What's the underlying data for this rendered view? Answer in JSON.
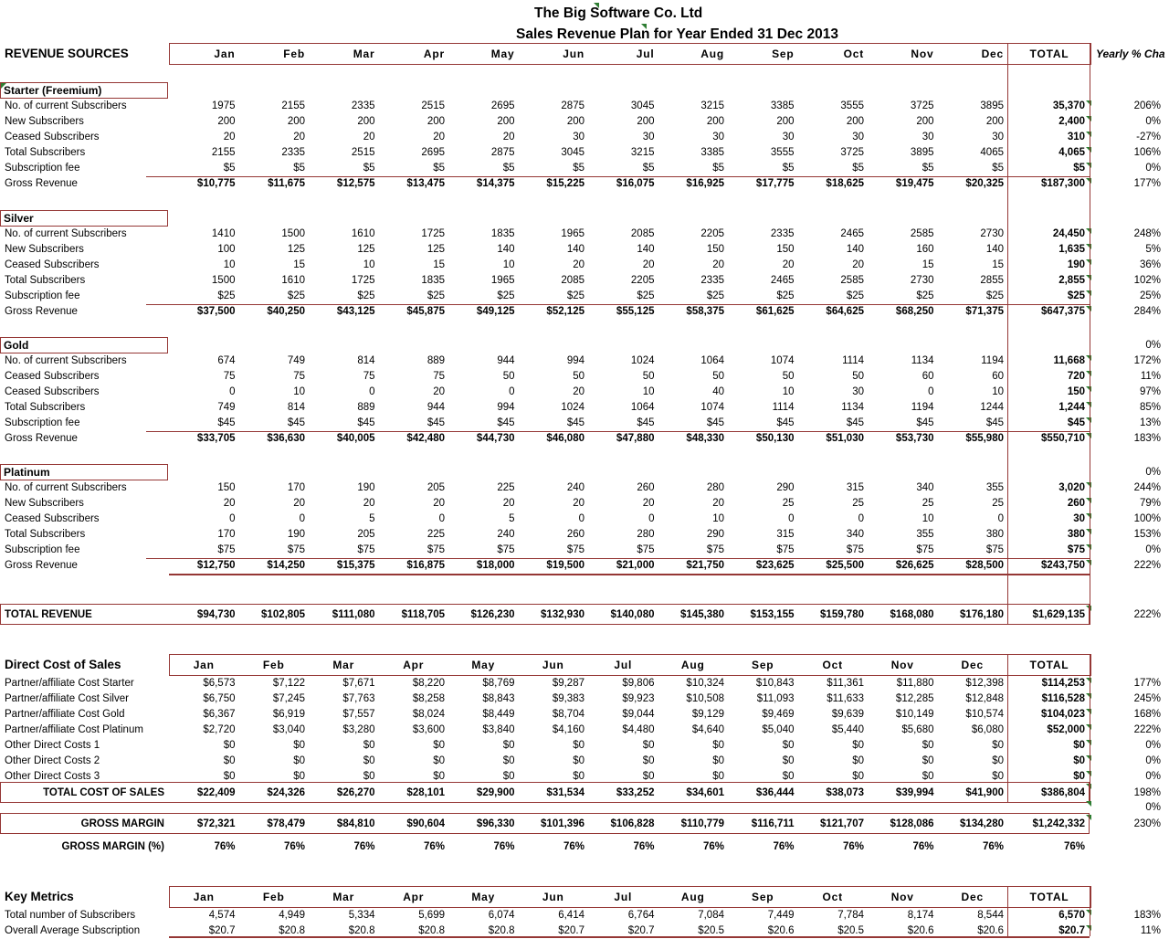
{
  "title": {
    "line1": "The Big Software Co. Ltd",
    "line2": "Sales Revenue Plan for Year Ended 31 Dec 2013"
  },
  "columns": {
    "revenue_title": "REVENUE SOURCES",
    "months": [
      "Jan",
      "Feb",
      "Mar",
      "Apr",
      "May",
      "Jun",
      "Jul",
      "Aug",
      "Sep",
      "Oct",
      "Nov",
      "Dec"
    ],
    "total_label": "TOTAL",
    "yearly_label": "Yearly % Cha"
  },
  "colors": {
    "border": "#953735",
    "marker": "#2e7d32"
  },
  "sections": [
    {
      "name": "Starter (Freemium)",
      "yearly": "",
      "rows": [
        {
          "label": "No. of current Subscribers",
          "values": [
            "1975",
            "2155",
            "2335",
            "2515",
            "2695",
            "2875",
            "3045",
            "3215",
            "3385",
            "3555",
            "3725",
            "3895"
          ],
          "total": "35,370",
          "yearly": "206%"
        },
        {
          "label": "New Subscribers",
          "values": [
            "200",
            "200",
            "200",
            "200",
            "200",
            "200",
            "200",
            "200",
            "200",
            "200",
            "200",
            "200"
          ],
          "total": "2,400",
          "yearly": "0%"
        },
        {
          "label": "Ceased Subscribers",
          "values": [
            "20",
            "20",
            "20",
            "20",
            "20",
            "30",
            "30",
            "30",
            "30",
            "30",
            "30",
            "30"
          ],
          "total": "310",
          "yearly": "-27%"
        },
        {
          "label": "Total Subscribers",
          "values": [
            "2155",
            "2335",
            "2515",
            "2695",
            "2875",
            "3045",
            "3215",
            "3385",
            "3555",
            "3725",
            "3895",
            "4065"
          ],
          "total": "4,065",
          "yearly": "106%"
        },
        {
          "label": "Subscription fee",
          "values": [
            "$5",
            "$5",
            "$5",
            "$5",
            "$5",
            "$5",
            "$5",
            "$5",
            "$5",
            "$5",
            "$5",
            "$5"
          ],
          "total": "$5",
          "yearly": "0%"
        },
        {
          "label": "Gross Revenue",
          "values": [
            "$10,775",
            "$11,675",
            "$12,575",
            "$13,475",
            "$14,375",
            "$15,225",
            "$16,075",
            "$16,925",
            "$17,775",
            "$18,625",
            "$19,475",
            "$20,325"
          ],
          "total": "$187,300",
          "yearly": "177%"
        }
      ]
    },
    {
      "name": "Silver",
      "yearly": "",
      "rows": [
        {
          "label": "No. of current Subscribers",
          "values": [
            "1410",
            "1500",
            "1610",
            "1725",
            "1835",
            "1965",
            "2085",
            "2205",
            "2335",
            "2465",
            "2585",
            "2730"
          ],
          "total": "24,450",
          "yearly": "248%"
        },
        {
          "label": "New Subscribers",
          "values": [
            "100",
            "125",
            "125",
            "125",
            "140",
            "140",
            "140",
            "150",
            "150",
            "140",
            "160",
            "140"
          ],
          "total": "1,635",
          "yearly": "5%"
        },
        {
          "label": "Ceased Subscribers",
          "values": [
            "10",
            "15",
            "10",
            "15",
            "10",
            "20",
            "20",
            "20",
            "20",
            "20",
            "15",
            "15"
          ],
          "total": "190",
          "yearly": "36%"
        },
        {
          "label": "Total Subscribers",
          "values": [
            "1500",
            "1610",
            "1725",
            "1835",
            "1965",
            "2085",
            "2205",
            "2335",
            "2465",
            "2585",
            "2730",
            "2855"
          ],
          "total": "2,855",
          "yearly": "102%"
        },
        {
          "label": "Subscription fee",
          "values": [
            "$25",
            "$25",
            "$25",
            "$25",
            "$25",
            "$25",
            "$25",
            "$25",
            "$25",
            "$25",
            "$25",
            "$25"
          ],
          "total": "$25",
          "yearly": "25%"
        },
        {
          "label": "Gross Revenue",
          "values": [
            "$37,500",
            "$40,250",
            "$43,125",
            "$45,875",
            "$49,125",
            "$52,125",
            "$55,125",
            "$58,375",
            "$61,625",
            "$64,625",
            "$68,250",
            "$71,375"
          ],
          "total": "$647,375",
          "yearly": "284%"
        }
      ]
    },
    {
      "name": "Gold",
      "yearly": "0%",
      "rows": [
        {
          "label": "No. of current Subscribers",
          "values": [
            "674",
            "749",
            "814",
            "889",
            "944",
            "994",
            "1024",
            "1064",
            "1074",
            "1114",
            "1134",
            "1194"
          ],
          "total": "11,668",
          "yearly": "172%"
        },
        {
          "label": "Ceased Subscribers",
          "values": [
            "75",
            "75",
            "75",
            "75",
            "50",
            "50",
            "50",
            "50",
            "50",
            "50",
            "60",
            "60"
          ],
          "total": "720",
          "yearly": "11%"
        },
        {
          "label": "Ceased Subscribers",
          "values": [
            "0",
            "10",
            "0",
            "20",
            "0",
            "20",
            "10",
            "40",
            "10",
            "30",
            "0",
            "10"
          ],
          "total": "150",
          "yearly": "97%"
        },
        {
          "label": "Total Subscribers",
          "values": [
            "749",
            "814",
            "889",
            "944",
            "994",
            "1024",
            "1064",
            "1074",
            "1114",
            "1134",
            "1194",
            "1244"
          ],
          "total": "1,244",
          "yearly": "85%"
        },
        {
          "label": "Subscription fee",
          "values": [
            "$45",
            "$45",
            "$45",
            "$45",
            "$45",
            "$45",
            "$45",
            "$45",
            "$45",
            "$45",
            "$45",
            "$45"
          ],
          "total": "$45",
          "yearly": "13%"
        },
        {
          "label": "Gross Revenue",
          "values": [
            "$33,705",
            "$36,630",
            "$40,005",
            "$42,480",
            "$44,730",
            "$46,080",
            "$47,880",
            "$48,330",
            "$50,130",
            "$51,030",
            "$53,730",
            "$55,980"
          ],
          "total": "$550,710",
          "yearly": "183%"
        }
      ]
    },
    {
      "name": "Platinum",
      "yearly": "0%",
      "rows": [
        {
          "label": "No. of current Subscribers",
          "values": [
            "150",
            "170",
            "190",
            "205",
            "225",
            "240",
            "260",
            "280",
            "290",
            "315",
            "340",
            "355"
          ],
          "total": "3,020",
          "yearly": "244%"
        },
        {
          "label": "New Subscribers",
          "values": [
            "20",
            "20",
            "20",
            "20",
            "20",
            "20",
            "20",
            "20",
            "25",
            "25",
            "25",
            "25"
          ],
          "total": "260",
          "yearly": "79%"
        },
        {
          "label": "Ceased Subscribers",
          "values": [
            "0",
            "0",
            "5",
            "0",
            "5",
            "0",
            "0",
            "10",
            "0",
            "0",
            "10",
            "0"
          ],
          "total": "30",
          "yearly": "100%"
        },
        {
          "label": "Total Subscribers",
          "values": [
            "170",
            "190",
            "205",
            "225",
            "240",
            "260",
            "280",
            "290",
            "315",
            "340",
            "355",
            "380"
          ],
          "total": "380",
          "yearly": "153%"
        },
        {
          "label": "Subscription fee",
          "values": [
            "$75",
            "$75",
            "$75",
            "$75",
            "$75",
            "$75",
            "$75",
            "$75",
            "$75",
            "$75",
            "$75",
            "$75"
          ],
          "total": "$75",
          "yearly": "0%"
        },
        {
          "label": "Gross Revenue",
          "values": [
            "$12,750",
            "$14,250",
            "$15,375",
            "$16,875",
            "$18,000",
            "$19,500",
            "$21,000",
            "$21,750",
            "$23,625",
            "$25,500",
            "$26,625",
            "$28,500"
          ],
          "total": "$243,750",
          "yearly": "222%"
        }
      ]
    }
  ],
  "total_revenue": {
    "label": "TOTAL REVENUE",
    "values": [
      "$94,730",
      "$102,805",
      "$111,080",
      "$118,705",
      "$126,230",
      "$132,930",
      "$140,080",
      "$145,380",
      "$153,155",
      "$159,780",
      "$168,080",
      "$176,180"
    ],
    "total": "$1,629,135",
    "yearly": "222%"
  },
  "direct_cost": {
    "title": "Direct Cost of Sales",
    "rows": [
      {
        "label": "Partner/affiliate Cost Starter",
        "values": [
          "$6,573",
          "$7,122",
          "$7,671",
          "$8,220",
          "$8,769",
          "$9,287",
          "$9,806",
          "$10,324",
          "$10,843",
          "$11,361",
          "$11,880",
          "$12,398"
        ],
        "total": "$114,253",
        "yearly": "177%"
      },
      {
        "label": "Partner/affiliate Cost Silver",
        "values": [
          "$6,750",
          "$7,245",
          "$7,763",
          "$8,258",
          "$8,843",
          "$9,383",
          "$9,923",
          "$10,508",
          "$11,093",
          "$11,633",
          "$12,285",
          "$12,848"
        ],
        "total": "$116,528",
        "yearly": "245%"
      },
      {
        "label": "Partner/affiliate Cost Gold",
        "values": [
          "$6,367",
          "$6,919",
          "$7,557",
          "$8,024",
          "$8,449",
          "$8,704",
          "$9,044",
          "$9,129",
          "$9,469",
          "$9,639",
          "$10,149",
          "$10,574"
        ],
        "total": "$104,023",
        "yearly": "168%"
      },
      {
        "label": "Partner/affiliate Cost Platinum",
        "values": [
          "$2,720",
          "$3,040",
          "$3,280",
          "$3,600",
          "$3,840",
          "$4,160",
          "$4,480",
          "$4,640",
          "$5,040",
          "$5,440",
          "$5,680",
          "$6,080"
        ],
        "total": "$52,000",
        "yearly": "222%"
      },
      {
        "label": "Other Direct Costs 1",
        "values": [
          "$0",
          "$0",
          "$0",
          "$0",
          "$0",
          "$0",
          "$0",
          "$0",
          "$0",
          "$0",
          "$0",
          "$0"
        ],
        "total": "$0",
        "yearly": "0%"
      },
      {
        "label": "Other Direct Costs 2",
        "values": [
          "$0",
          "$0",
          "$0",
          "$0",
          "$0",
          "$0",
          "$0",
          "$0",
          "$0",
          "$0",
          "$0",
          "$0"
        ],
        "total": "$0",
        "yearly": "0%"
      },
      {
        "label": "Other Direct Costs 3",
        "values": [
          "$0",
          "$0",
          "$0",
          "$0",
          "$0",
          "$0",
          "$0",
          "$0",
          "$0",
          "$0",
          "$0",
          "$0"
        ],
        "total": "$0",
        "yearly": "0%"
      }
    ],
    "total_row": {
      "label": "TOTAL COST OF SALES",
      "values": [
        "$22,409",
        "$24,326",
        "$26,270",
        "$28,101",
        "$29,900",
        "$31,534",
        "$33,252",
        "$34,601",
        "$36,444",
        "$38,073",
        "$39,994",
        "$41,900"
      ],
      "total": "$386,804",
      "yearly": "198%"
    },
    "below_yearly": "0%"
  },
  "gross_margin": {
    "label": "GROSS MARGIN",
    "values": [
      "$72,321",
      "$78,479",
      "$84,810",
      "$90,604",
      "$96,330",
      "$101,396",
      "$106,828",
      "$110,779",
      "$116,711",
      "$121,707",
      "$128,086",
      "$134,280"
    ],
    "total": "$1,242,332",
    "yearly": "230%"
  },
  "gross_margin_pct": {
    "label": "GROSS MARGIN (%)",
    "values": [
      "76%",
      "76%",
      "76%",
      "76%",
      "76%",
      "76%",
      "76%",
      "76%",
      "76%",
      "76%",
      "76%",
      "76%"
    ],
    "total": "76%",
    "yearly": ""
  },
  "key_metrics": {
    "title": "Key Metrics",
    "rows": [
      {
        "label": "Total number of Subscribers",
        "values": [
          "4,574",
          "4,949",
          "5,334",
          "5,699",
          "6,074",
          "6,414",
          "6,764",
          "7,084",
          "7,449",
          "7,784",
          "8,174",
          "8,544"
        ],
        "total": "6,570",
        "yearly": "183%"
      },
      {
        "label": "Overall Average Subscription",
        "values": [
          "$20.7",
          "$20.8",
          "$20.8",
          "$20.8",
          "$20.8",
          "$20.7",
          "$20.7",
          "$20.5",
          "$20.6",
          "$20.5",
          "$20.6",
          "$20.6"
        ],
        "total": "$20.7",
        "yearly": "11%"
      }
    ]
  }
}
